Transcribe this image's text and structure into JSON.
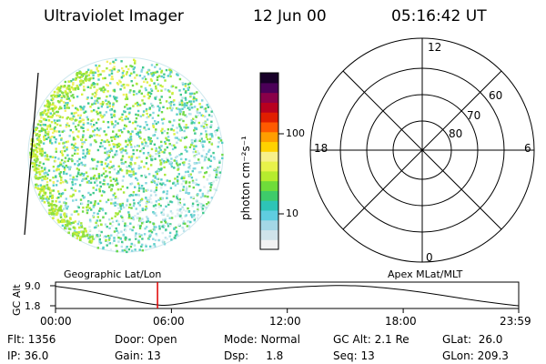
{
  "header": {
    "instrument": "Ultraviolet Imager",
    "date": "12 Jun 00",
    "time": "05:16:42 UT"
  },
  "colorbar": {
    "unit_label": "photon cm⁻²s⁻¹",
    "ticks": [
      "100",
      "10"
    ],
    "colors": [
      "#f2f2f2",
      "#cfe3ea",
      "#a4d7e6",
      "#5fcde0",
      "#2ec4b6",
      "#3ecb6a",
      "#6fdc3a",
      "#b6ec2e",
      "#e8f24a",
      "#f7f08a",
      "#ffd200",
      "#ff9e00",
      "#ff5a00",
      "#e11e00",
      "#b8001f",
      "#8a0049",
      "#4b0058",
      "#180028"
    ]
  },
  "polar": {
    "hour_labels": [
      "12",
      "18",
      "6",
      "0"
    ],
    "lat_labels": [
      "60",
      "70",
      "80"
    ]
  },
  "timeline": {
    "left_label": "Geographic Lat/Lon",
    "right_label": "Apex MLat/MLT",
    "axis_title": "GC Alt",
    "y_ticks": [
      "9.0",
      "1.8"
    ],
    "x_ticks": [
      "00:00",
      "06:00",
      "12:00",
      "18:00",
      "23:59"
    ],
    "marker_color": "#e00000"
  },
  "chart_data": {
    "type": "line",
    "xlabel": "",
    "ylabel": "GC Alt",
    "x_range_hours": [
      0,
      23.98
    ],
    "ylim": [
      1.8,
      9.0
    ],
    "x_hours": [
      0,
      1,
      2,
      3,
      4,
      5,
      5.7,
      6.5,
      8,
      10,
      12,
      14,
      15,
      16,
      18,
      20,
      22,
      23.98
    ],
    "series": [
      {
        "values": [
          8.8,
          7.9,
          6.6,
          5.1,
          3.6,
          2.3,
          1.8,
          2.6,
          4.4,
          6.7,
          8.4,
          9.0,
          9.1,
          8.9,
          7.6,
          5.6,
          3.4,
          1.8
        ]
      }
    ],
    "current_time_hours": 5.28
  },
  "status": {
    "flt": "Flt: 1356",
    "ip": "IP: 36.0",
    "door": "Door: Open",
    "gain": "Gain: 13",
    "mode": "Mode: Normal",
    "dsp": "Dsp:     1.8",
    "gcalt": "GC Alt: 2.1 Re",
    "seq": "Seq: 13",
    "glat": "GLat:  26.0",
    "glon": "GLon: 209.3"
  }
}
